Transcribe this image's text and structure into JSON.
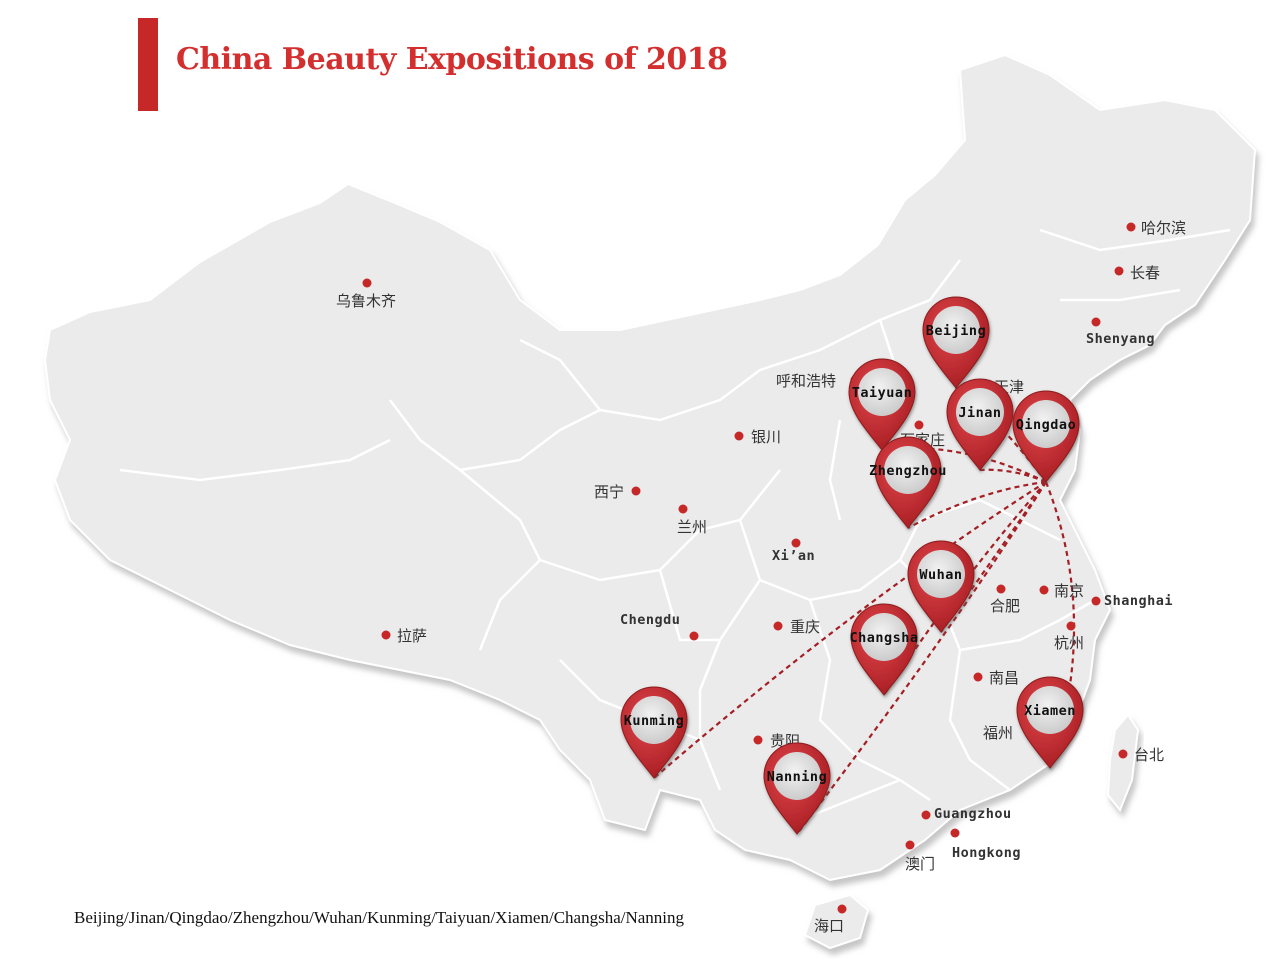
{
  "title": "China Beauty Expositions of 2018",
  "footer": "Beijing/Jinan/Qingdao/Zhengzhou/Wuhan/Kunming/Taiyuan/Xiamen/Changsha/Nanning",
  "colors": {
    "accent": "#c62828",
    "land": "#ebebeb",
    "border": "#ffffff",
    "route": "#a31f24"
  },
  "expo_cities": {
    "beijing": "Beijing",
    "taiyuan": "Taiyuan",
    "jinan": "Jinan",
    "qingdao": "Qingdao",
    "zhengzhou": "Zhengzhou",
    "wuhan": "Wuhan",
    "changsha": "Changsha",
    "kunming": "Kunming",
    "nanning": "Nanning",
    "xiamen": "Xiamen"
  },
  "other_cities": {
    "urumqi": "乌鲁木齐",
    "harbin": "哈尔滨",
    "changchun": "长春",
    "shenyang": "Shenyang",
    "hohhot": "呼和浩特",
    "tianjin": "天津",
    "shijiazhuang": "石家庄",
    "yinchuan": "银川",
    "xining": "西宁",
    "lanzhou": "兰州",
    "xian": "Xi’an",
    "nanjing": "南京",
    "shanghai": "Shanghai",
    "hefei": "合肥",
    "hangzhou": "杭州",
    "chengdu": "Chengdu",
    "chongqing": "重庆",
    "lhasa": "拉萨",
    "nanchang": "南昌",
    "fuzhou": "福州",
    "taipei": "台北",
    "guiyang": "贵阳",
    "guangzhou": "Guangzhou",
    "macau": "澳门",
    "hongkong": "Hongkong",
    "haikou": "海口"
  }
}
